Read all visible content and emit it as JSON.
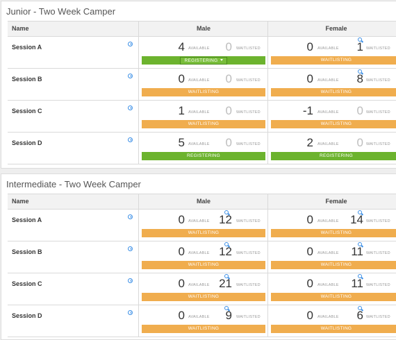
{
  "labels": {
    "name": "Name",
    "male": "Male",
    "female": "Female",
    "available": "AVAILABLE",
    "waitlisted": "WAITLISTED"
  },
  "panels": [
    {
      "title": "Junior - Two Week Camper",
      "rows": [
        {
          "session": "Session A",
          "male": {
            "available": "4",
            "waitlisted": "0",
            "status": "REGISTERING",
            "color": "green",
            "dropdown": true,
            "search": false
          },
          "female": {
            "available": "0",
            "waitlisted": "1",
            "status": "WAITLISTING",
            "color": "orange",
            "search": true
          }
        },
        {
          "session": "Session B",
          "male": {
            "available": "0",
            "waitlisted": "0",
            "status": "WAITLISTING",
            "color": "orange",
            "search": false
          },
          "female": {
            "available": "0",
            "waitlisted": "8",
            "status": "WAITLISTING",
            "color": "orange",
            "search": true
          }
        },
        {
          "session": "Session C",
          "male": {
            "available": "1",
            "waitlisted": "0",
            "status": "WAITLISTING",
            "color": "orange",
            "search": false
          },
          "female": {
            "available": "-1",
            "waitlisted": "0",
            "status": "WAITLISTING",
            "color": "orange",
            "search": false
          }
        },
        {
          "session": "Session D",
          "male": {
            "available": "5",
            "waitlisted": "0",
            "status": "REGISTERING",
            "color": "green",
            "search": false
          },
          "female": {
            "available": "2",
            "waitlisted": "0",
            "status": "REGISTERING",
            "color": "green",
            "search": false
          }
        }
      ]
    },
    {
      "title": "Intermediate - Two Week Camper",
      "rows": [
        {
          "session": "Session A",
          "male": {
            "available": "0",
            "waitlisted": "12",
            "status": "WAITLISTING",
            "color": "orange",
            "search": true
          },
          "female": {
            "available": "0",
            "waitlisted": "14",
            "status": "WAITLISTING",
            "color": "orange",
            "search": true
          }
        },
        {
          "session": "Session B",
          "male": {
            "available": "0",
            "waitlisted": "12",
            "status": "WAITLISTING",
            "color": "orange",
            "search": true
          },
          "female": {
            "available": "0",
            "waitlisted": "11",
            "status": "WAITLISTING",
            "color": "orange",
            "search": true
          }
        },
        {
          "session": "Session C",
          "male": {
            "available": "0",
            "waitlisted": "21",
            "status": "WAITLISTING",
            "color": "orange",
            "search": true
          },
          "female": {
            "available": "0",
            "waitlisted": "11",
            "status": "WAITLISTING",
            "color": "orange",
            "search": true
          }
        },
        {
          "session": "Session D",
          "male": {
            "available": "0",
            "waitlisted": "9",
            "status": "WAITLISTING",
            "color": "orange",
            "search": true
          },
          "female": {
            "available": "0",
            "waitlisted": "6",
            "status": "WAITLISTING",
            "color": "orange",
            "search": true
          }
        }
      ]
    }
  ],
  "colors": {
    "orange": "#f0ad4e",
    "green": "#6cb32e",
    "link": "#3a8ee6"
  }
}
